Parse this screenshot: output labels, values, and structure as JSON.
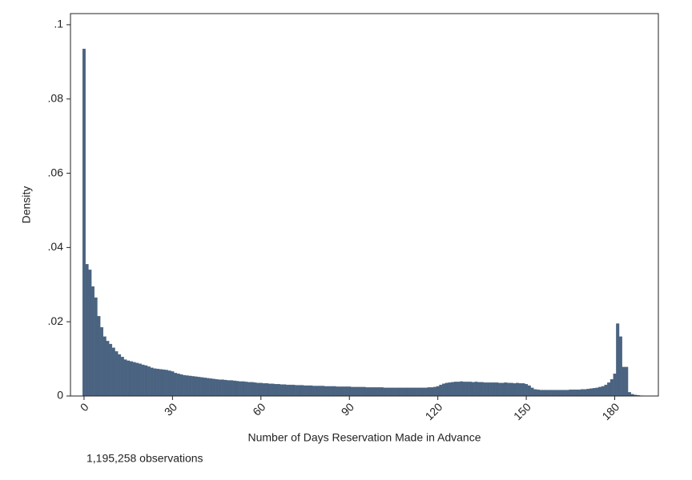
{
  "chart_data": {
    "type": "histogram",
    "xlabel": "Number of Days Reservation Made in Advance",
    "ylabel": "Density",
    "note": "1,195,258 observations",
    "color": "#4a6380",
    "bins": [
      -0.5,
      0.5,
      1.5,
      2.5,
      3.5,
      4.5,
      5.5,
      6.5,
      7.5,
      8.5,
      9.5,
      10.5,
      11.5,
      12.5,
      13.5,
      14.5,
      15.5,
      16.5,
      17.5,
      18.5,
      19.5,
      20.5,
      21.5,
      22.5,
      23.5,
      24.5,
      25.5,
      26.5,
      27.5,
      28.5,
      29.5,
      30.5,
      31.5,
      32.5,
      33.5,
      34.5,
      35.5,
      36.5,
      37.5,
      38.5,
      39.5,
      40.5,
      41.5,
      42.5,
      43.5,
      44.5,
      45.5,
      46.5,
      47.5,
      48.5,
      49.5,
      50.5,
      51.5,
      52.5,
      53.5,
      54.5,
      55.5,
      56.5,
      57.5,
      58.5,
      59.5,
      60.5,
      61.5,
      62.5,
      63.5,
      64.5,
      65.5,
      66.5,
      67.5,
      68.5,
      69.5,
      70.5,
      71.5,
      72.5,
      73.5,
      74.5,
      75.5,
      76.5,
      77.5,
      78.5,
      79.5,
      80.5,
      81.5,
      82.5,
      83.5,
      84.5,
      85.5,
      86.5,
      87.5,
      88.5,
      89.5,
      90.5,
      91.5,
      92.5,
      93.5,
      94.5,
      95.5,
      96.5,
      97.5,
      98.5,
      99.5,
      100.5,
      101.5,
      102.5,
      103.5,
      104.5,
      105.5,
      106.5,
      107.5,
      108.5,
      109.5,
      110.5,
      111.5,
      112.5,
      113.5,
      114.5,
      115.5,
      116.5,
      117.5,
      118.5,
      119.5,
      120.5,
      121.5,
      122.5,
      123.5,
      124.5,
      125.5,
      126.5,
      127.5,
      128.5,
      129.5,
      130.5,
      131.5,
      132.5,
      133.5,
      134.5,
      135.5,
      136.5,
      137.5,
      138.5,
      139.5,
      140.5,
      141.5,
      142.5,
      143.5,
      144.5,
      145.5,
      146.5,
      147.5,
      148.5,
      149.5,
      150.5,
      151.5,
      152.5,
      153.5,
      154.5,
      155.5,
      156.5,
      157.5,
      158.5,
      159.5,
      160.5,
      161.5,
      162.5,
      163.5,
      164.5,
      165.5,
      166.5,
      167.5,
      168.5,
      169.5,
      170.5,
      171.5,
      172.5,
      173.5,
      174.5,
      175.5,
      176.5,
      177.5,
      178.5,
      179.5,
      180.5,
      181.5,
      182.5,
      183.5,
      184.5,
      185.5,
      186.5,
      187.5,
      188.5,
      189.5
    ],
    "values": [
      0.0935,
      0.0355,
      0.034,
      0.0295,
      0.0265,
      0.0215,
      0.0185,
      0.016,
      0.0148,
      0.014,
      0.013,
      0.012,
      0.0112,
      0.0105,
      0.0098,
      0.0095,
      0.0093,
      0.0091,
      0.0089,
      0.0087,
      0.0084,
      0.0082,
      0.0079,
      0.0076,
      0.0074,
      0.0073,
      0.0072,
      0.0071,
      0.007,
      0.0068,
      0.0066,
      0.0062,
      0.006,
      0.0058,
      0.0056,
      0.0055,
      0.0054,
      0.0053,
      0.0052,
      0.0051,
      0.005,
      0.0049,
      0.0048,
      0.0047,
      0.0046,
      0.0045,
      0.0044,
      0.0044,
      0.0043,
      0.0042,
      0.0042,
      0.0041,
      0.004,
      0.0039,
      0.0039,
      0.0038,
      0.0037,
      0.0037,
      0.0036,
      0.0035,
      0.0035,
      0.0034,
      0.0034,
      0.0033,
      0.0033,
      0.0032,
      0.0032,
      0.0031,
      0.0031,
      0.003,
      0.003,
      0.003,
      0.0029,
      0.0029,
      0.0029,
      0.0028,
      0.0028,
      0.0028,
      0.0027,
      0.0027,
      0.0027,
      0.0027,
      0.0026,
      0.0026,
      0.0026,
      0.0026,
      0.0025,
      0.0025,
      0.0025,
      0.0025,
      0.0025,
      0.0024,
      0.0024,
      0.0024,
      0.0024,
      0.0024,
      0.0023,
      0.0023,
      0.0023,
      0.0023,
      0.0023,
      0.0023,
      0.0022,
      0.0022,
      0.0022,
      0.0022,
      0.0022,
      0.0022,
      0.0022,
      0.0022,
      0.0022,
      0.0022,
      0.0022,
      0.0022,
      0.0022,
      0.0022,
      0.0022,
      0.0023,
      0.0023,
      0.0024,
      0.0026,
      0.003,
      0.0033,
      0.0035,
      0.0036,
      0.0037,
      0.0038,
      0.0038,
      0.0039,
      0.0038,
      0.0038,
      0.0038,
      0.0037,
      0.0038,
      0.0037,
      0.0037,
      0.0036,
      0.0036,
      0.0036,
      0.0036,
      0.0036,
      0.0035,
      0.0035,
      0.0036,
      0.0035,
      0.0035,
      0.0034,
      0.0035,
      0.0034,
      0.0034,
      0.0032,
      0.0028,
      0.0022,
      0.0018,
      0.0017,
      0.0016,
      0.0016,
      0.0016,
      0.0016,
      0.0016,
      0.0016,
      0.0016,
      0.0016,
      0.0016,
      0.0016,
      0.0017,
      0.0017,
      0.0017,
      0.0017,
      0.0018,
      0.0018,
      0.0019,
      0.002,
      0.0021,
      0.0022,
      0.0024,
      0.0026,
      0.003,
      0.0036,
      0.0045,
      0.006,
      0.0195,
      0.016,
      0.0078,
      0.0078,
      0.001,
      0.0005,
      0.0003,
      0.0002,
      0.0001
    ],
    "xlim": [
      -4.6,
      194.8
    ],
    "xticks": [
      0,
      30,
      60,
      90,
      120,
      150,
      180
    ],
    "ylim": [
      0,
      0.103
    ],
    "yticks": [
      0,
      {
        "value": 0.02,
        "label": ".02"
      },
      {
        "value": 0.04,
        "label": ".04"
      },
      {
        "value": 0.06,
        "label": ".06"
      },
      {
        "value": 0.08,
        "label": ".08"
      },
      {
        "value": 0.1,
        "label": ".1"
      }
    ]
  }
}
